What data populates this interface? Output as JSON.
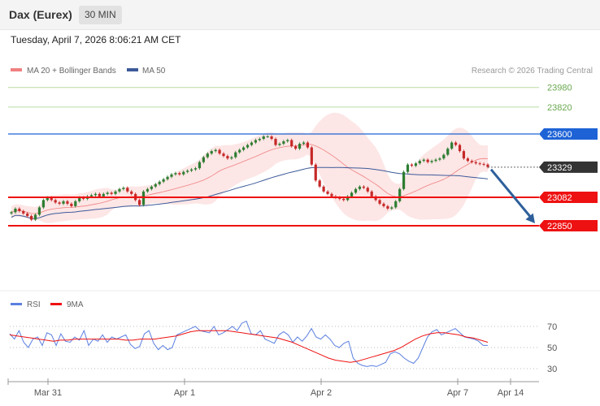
{
  "header": {
    "title": "Dax (Eurex)",
    "interval_label": "30 MIN",
    "datetime": "Tuesday, April 7, 2026 8:06:21 AM CET"
  },
  "legend": {
    "ma20_label": "MA 20 + Bollinger Bands",
    "ma50_label": "MA 50",
    "credit": "Research © 2026 Trading Central"
  },
  "rsi_legend": {
    "rsi_label": "RSI",
    "ma9_label": "9MA"
  },
  "colors": {
    "up_candle": "#2e7d32",
    "down_candle": "#c62828",
    "bollinger_fill": "#fde2e2",
    "ma20": "#f08080",
    "ma50": "#3c5a99",
    "resistance_green": "#8cc152",
    "pivot_blue": "#1e63d6",
    "support_red": "#ee1111",
    "last_price_box": "#333333",
    "arrow": "#2d5f9a",
    "rsi_line": "#5b7fe0",
    "rsi_ma": "#ee1111"
  },
  "chart_data": [
    {
      "type": "candlestick",
      "title": "Dax (Eurex)",
      "interval": "30 MIN",
      "x_tick_labels": [
        "Mar 31",
        "Apr 1",
        "Apr 2",
        "Apr 7",
        "Apr 14"
      ],
      "y_range": [
        22700,
        24150
      ],
      "levels": [
        {
          "label": "23980",
          "value": 23980,
          "role": "resistance",
          "color": "#6aa84f"
        },
        {
          "label": "23820",
          "value": 23820,
          "role": "resistance",
          "color": "#6aa84f"
        },
        {
          "label": "23600",
          "value": 23600,
          "role": "pivot",
          "color": "#1e63d6"
        },
        {
          "label": "23329",
          "value": 23329,
          "role": "last",
          "color": "#333333"
        },
        {
          "label": "23082",
          "value": 23082,
          "role": "support",
          "color": "#ee1111"
        },
        {
          "label": "22850",
          "value": 22850,
          "role": "support",
          "color": "#ee1111"
        }
      ],
      "projection": {
        "from": 23330,
        "to": 22850,
        "direction": "down"
      },
      "series": [
        {
          "name": "MA 20 + Bollinger Bands"
        },
        {
          "name": "MA 50"
        }
      ],
      "closes": [
        22960,
        22990,
        22970,
        22950,
        22930,
        22900,
        22940,
        23000,
        23060,
        23080,
        23060,
        23040,
        23030,
        23050,
        23030,
        23010,
        23050,
        23080,
        23070,
        23090,
        23100,
        23110,
        23090,
        23110,
        23120,
        23110,
        23130,
        23150,
        23160,
        23130,
        23110,
        23060,
        23020,
        23130,
        23150,
        23170,
        23190,
        23210,
        23230,
        23250,
        23270,
        23280,
        23270,
        23290,
        23300,
        23310,
        23320,
        23370,
        23410,
        23440,
        23460,
        23470,
        23440,
        23420,
        23400,
        23410,
        23450,
        23470,
        23490,
        23510,
        23530,
        23550,
        23560,
        23580,
        23580,
        23560,
        23510,
        23520,
        23540,
        23550,
        23500,
        23480,
        23520,
        23530,
        23490,
        23350,
        23220,
        23170,
        23130,
        23110,
        23090,
        23080,
        23070,
        23060,
        23090,
        23120,
        23150,
        23170,
        23160,
        23130,
        23090,
        23060,
        23030,
        23010,
        22990,
        23000,
        23050,
        23150,
        23290,
        23350,
        23340,
        23360,
        23380,
        23390,
        23370,
        23380,
        23390,
        23400,
        23430,
        23480,
        23530,
        23510,
        23460,
        23400,
        23380,
        23370,
        23360,
        23355,
        23350,
        23330
      ],
      "opens_note": "each candle opens at the previous close",
      "axis": {
        "xlabel": "",
        "ylabel": "",
        "grid": false,
        "legend": "top-left"
      }
    },
    {
      "type": "line",
      "title": "RSI",
      "y_ticks": [
        70,
        50,
        30
      ],
      "y_range": [
        20,
        80
      ],
      "x_tick_labels": [
        "Mar 31",
        "Apr 1",
        "Apr 2",
        "Apr 7",
        "Apr 14"
      ],
      "series": [
        {
          "name": "RSI",
          "values": [
            63,
            58,
            66,
            55,
            50,
            58,
            60,
            52,
            64,
            62,
            52,
            63,
            56,
            55,
            60,
            57,
            66,
            52,
            58,
            56,
            62,
            55,
            60,
            58,
            60,
            62,
            53,
            49,
            51,
            63,
            66,
            54,
            48,
            52,
            48,
            50,
            62,
            64,
            66,
            68,
            70,
            66,
            65,
            64,
            70,
            62,
            64,
            67,
            70,
            66,
            73,
            75,
            63,
            62,
            66,
            58,
            56,
            54,
            62,
            65,
            62,
            55,
            60,
            56,
            61,
            68,
            60,
            58,
            62,
            58,
            52,
            50,
            54,
            56,
            40,
            35,
            33,
            32,
            33,
            32,
            34,
            36,
            44,
            46,
            44,
            40,
            37,
            35,
            40,
            50,
            60,
            65,
            67,
            62,
            64,
            66,
            68,
            64,
            60,
            59,
            58,
            56,
            52,
            52
          ]
        },
        {
          "name": "9MA",
          "values": [
            62,
            61,
            60,
            59,
            58,
            57,
            56,
            57,
            57,
            58,
            58,
            58,
            58,
            58,
            58,
            58,
            57,
            57,
            58,
            58,
            58,
            59,
            60,
            61,
            63,
            65,
            66,
            66,
            66,
            66,
            66,
            65,
            64,
            63,
            62,
            61,
            60,
            59,
            57,
            55,
            52,
            49,
            46,
            43,
            40,
            38,
            37,
            36,
            37,
            39,
            41,
            43,
            45,
            47,
            50,
            54,
            58,
            61,
            63,
            64,
            64,
            63,
            62,
            60,
            59,
            57,
            55
          ]
        }
      ],
      "axis": {
        "xlabel": "",
        "ylabel": "",
        "grid": true,
        "legend": "top-left"
      }
    }
  ]
}
